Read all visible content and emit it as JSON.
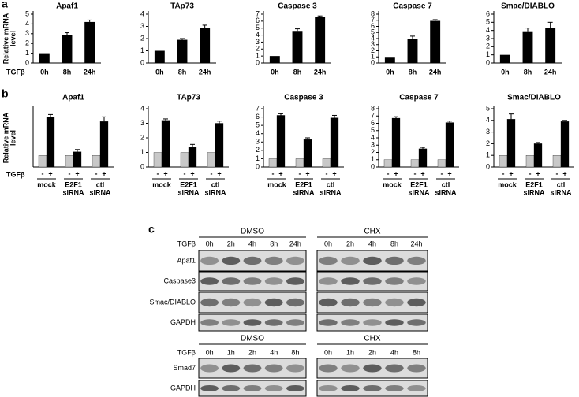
{
  "panel_labels": [
    "a",
    "b",
    "c"
  ],
  "chart_data": [
    {
      "type": "bar",
      "title": "Apaf1",
      "ylabel": [
        "Relative mRNA",
        "level"
      ],
      "treatment_label": "TGFβ",
      "categories": [
        "0h",
        "8h",
        "24h"
      ],
      "values": [
        1,
        2.9,
        4.2
      ],
      "errors": [
        0,
        0.2,
        0.2
      ],
      "color": "#000000",
      "ylim": [
        0,
        5
      ],
      "yticks": [
        0,
        1,
        2,
        3,
        4,
        5
      ]
    },
    {
      "type": "bar",
      "title": "TAp73",
      "categories": [
        "0h",
        "8h",
        "24h"
      ],
      "values": [
        1,
        1.9,
        2.9
      ],
      "errors": [
        0,
        0.1,
        0.2
      ],
      "color": "#000000",
      "ylim": [
        0,
        4
      ],
      "yticks": [
        0,
        1,
        2,
        3,
        4
      ]
    },
    {
      "type": "bar",
      "title": "Caspase 3",
      "categories": [
        "0h",
        "8h",
        "24h"
      ],
      "values": [
        1,
        4.6,
        6.6
      ],
      "errors": [
        0,
        0.3,
        0.15
      ],
      "color": "#000000",
      "ylim": [
        0,
        7
      ],
      "yticks": [
        0,
        1,
        2,
        3,
        4,
        5,
        6,
        7
      ]
    },
    {
      "type": "bar",
      "title": "Caspase 7",
      "categories": [
        "0h",
        "8h",
        "24h"
      ],
      "values": [
        1,
        4,
        6.9
      ],
      "errors": [
        0,
        0.4,
        0.2
      ],
      "color": "#000000",
      "ylim": [
        0,
        8
      ],
      "yticks": [
        0,
        1,
        2,
        3,
        4,
        5,
        6,
        7,
        8
      ]
    },
    {
      "type": "bar",
      "title": "Smac/DIABLO",
      "categories": [
        "0h",
        "8h",
        "24h"
      ],
      "values": [
        1,
        3.9,
        4.3
      ],
      "errors": [
        0,
        0.4,
        0.7
      ],
      "color": "#000000",
      "ylim": [
        0,
        6
      ],
      "yticks": [
        0,
        1,
        2,
        3,
        4,
        5,
        6
      ]
    },
    {
      "type": "grouped-bar",
      "title": "Apaf1",
      "ylabel": [
        "Relative mRNA",
        "level"
      ],
      "treatment_label": "TGFβ",
      "categories": [
        "-",
        "+",
        "-",
        "+",
        "-",
        "+"
      ],
      "groups": [
        [
          "mock"
        ],
        [
          "E2F1",
          "siRNA"
        ],
        [
          "ctl",
          "siRNA"
        ]
      ],
      "values": [
        1,
        4.3,
        1,
        1.3,
        1,
        3.9
      ],
      "errors": [
        0,
        0.2,
        0,
        0.2,
        0,
        0.4
      ],
      "colors": [
        "#c8c8c8",
        "#000000",
        "#c8c8c8",
        "#000000",
        "#c8c8c8",
        "#000000"
      ],
      "ylim": [
        0,
        5
      ]
    },
    {
      "type": "grouped-bar",
      "title": "TAp73",
      "categories": [
        "-",
        "+",
        "-",
        "+",
        "-",
        "+"
      ],
      "groups": [
        [
          "mock"
        ],
        [
          "E2F1",
          "siRNA"
        ],
        [
          "ctl",
          "siRNA"
        ]
      ],
      "values": [
        1,
        3.2,
        1,
        1.35,
        1,
        3.0
      ],
      "errors": [
        0,
        0.1,
        0,
        0.2,
        0,
        0.15
      ],
      "colors": [
        "#c8c8c8",
        "#000000",
        "#c8c8c8",
        "#000000",
        "#c8c8c8",
        "#000000"
      ],
      "ylim": [
        0,
        4
      ],
      "yticks": [
        0,
        1,
        2,
        3,
        4
      ]
    },
    {
      "type": "grouped-bar",
      "title": "Caspase 3",
      "categories": [
        "-",
        "+",
        "-",
        "+",
        "-",
        "+"
      ],
      "groups": [
        [
          "mock"
        ],
        [
          "E2F1",
          "siRNA"
        ],
        [
          "ctl",
          "siRNA"
        ]
      ],
      "values": [
        1,
        6.2,
        1,
        3.3,
        1,
        5.9
      ],
      "errors": [
        0,
        0.2,
        0,
        0.2,
        0,
        0.3
      ],
      "colors": [
        "#c8c8c8",
        "#000000",
        "#c8c8c8",
        "#000000",
        "#c8c8c8",
        "#000000"
      ],
      "ylim": [
        0,
        7
      ],
      "yticks": [
        0,
        1,
        2,
        3,
        4,
        5,
        6,
        7
      ]
    },
    {
      "type": "grouped-bar",
      "title": "Caspase 7",
      "categories": [
        "-",
        "+",
        "-",
        "+",
        "-",
        "+"
      ],
      "groups": [
        [
          "mock"
        ],
        [
          "E2F1",
          "siRNA"
        ],
        [
          "ctl",
          "siRNA"
        ]
      ],
      "values": [
        1,
        6.7,
        1,
        2.5,
        1,
        6.1
      ],
      "errors": [
        0,
        0.2,
        0,
        0.2,
        0,
        0.2
      ],
      "colors": [
        "#c8c8c8",
        "#000000",
        "#c8c8c8",
        "#000000",
        "#c8c8c8",
        "#000000"
      ],
      "ylim": [
        0,
        8
      ],
      "yticks": [
        0,
        1,
        2,
        3,
        4,
        5,
        6,
        7,
        8
      ]
    },
    {
      "type": "grouped-bar",
      "title": "Smac/DIABLO",
      "categories": [
        "-",
        "+",
        "-",
        "+",
        "-",
        "+"
      ],
      "groups": [
        [
          "mock"
        ],
        [
          "E2F1",
          "siRNA"
        ],
        [
          "ctl",
          "siRNA"
        ]
      ],
      "values": [
        1,
        4.1,
        1,
        2.0,
        1,
        3.9
      ],
      "errors": [
        0,
        0.45,
        0,
        0.1,
        0,
        0.1
      ],
      "colors": [
        "#c8c8c8",
        "#000000",
        "#c8c8c8",
        "#000000",
        "#c8c8c8",
        "#000000"
      ],
      "ylim": [
        0,
        5
      ],
      "yticks": [
        0,
        1,
        2,
        3,
        4,
        5
      ]
    }
  ],
  "blots": [
    {
      "treatment_label": "TGFβ",
      "conditions": [
        {
          "name": "DMSO",
          "lanes": [
            "0h",
            "2h",
            "4h",
            "8h",
            "24h"
          ]
        },
        {
          "name": "CHX",
          "lanes": [
            "0h",
            "2h",
            "4h",
            "8h",
            "24h"
          ]
        }
      ],
      "rows": [
        "Apaf1",
        "Caspase3",
        "Smac/DIABLO",
        "GAPDH"
      ]
    },
    {
      "treatment_label": "TGFβ",
      "conditions": [
        {
          "name": "DMSO",
          "lanes": [
            "0h",
            "1h",
            "2h",
            "4h",
            "8h"
          ]
        },
        {
          "name": "CHX",
          "lanes": [
            "0h",
            "1h",
            "2h",
            "4h",
            "8h"
          ]
        }
      ],
      "rows": [
        "Smad7",
        "GAPDH"
      ]
    }
  ]
}
